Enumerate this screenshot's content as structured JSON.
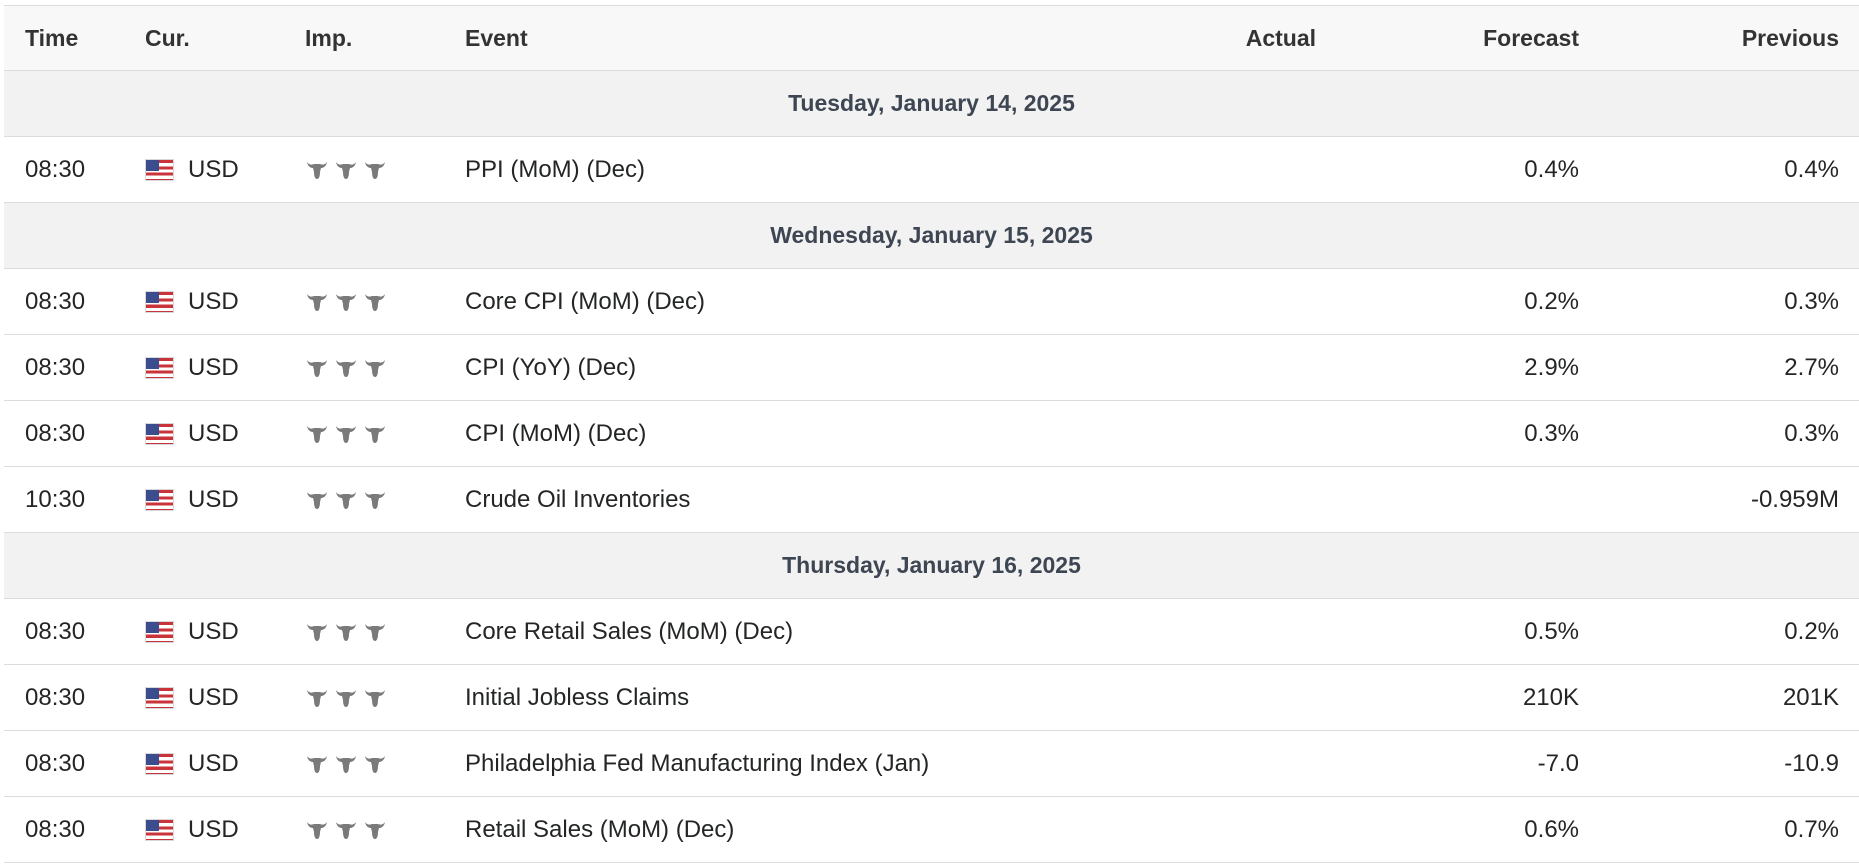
{
  "header": {
    "time": "Time",
    "currency": "Cur.",
    "importance": "Imp.",
    "event": "Event",
    "actual": "Actual",
    "forecast": "Forecast",
    "previous": "Previous"
  },
  "colors": {
    "header_bg": "#f8f8f8",
    "day_bg": "#f2f2f2",
    "border": "#dcdcdc",
    "bull_icon": "#7a7a7a",
    "text": "#232526"
  },
  "days": [
    {
      "label": "Tuesday, January 14, 2025",
      "events": [
        {
          "time": "08:30",
          "currency": "USD",
          "flag_icon": "us-flag-icon",
          "importance": 3,
          "event": "PPI (MoM) (Dec)",
          "actual": "",
          "forecast": "0.4%",
          "previous": "0.4%"
        }
      ]
    },
    {
      "label": "Wednesday, January 15, 2025",
      "events": [
        {
          "time": "08:30",
          "currency": "USD",
          "flag_icon": "us-flag-icon",
          "importance": 3,
          "event": "Core CPI (MoM) (Dec)",
          "actual": "",
          "forecast": "0.2%",
          "previous": "0.3%"
        },
        {
          "time": "08:30",
          "currency": "USD",
          "flag_icon": "us-flag-icon",
          "importance": 3,
          "event": "CPI (YoY) (Dec)",
          "actual": "",
          "forecast": "2.9%",
          "previous": "2.7%"
        },
        {
          "time": "08:30",
          "currency": "USD",
          "flag_icon": "us-flag-icon",
          "importance": 3,
          "event": "CPI (MoM) (Dec)",
          "actual": "",
          "forecast": "0.3%",
          "previous": "0.3%"
        },
        {
          "time": "10:30",
          "currency": "USD",
          "flag_icon": "us-flag-icon",
          "importance": 3,
          "event": "Crude Oil Inventories",
          "actual": "",
          "forecast": "",
          "previous": "-0.959M"
        }
      ]
    },
    {
      "label": "Thursday, January 16, 2025",
      "events": [
        {
          "time": "08:30",
          "currency": "USD",
          "flag_icon": "us-flag-icon",
          "importance": 3,
          "event": "Core Retail Sales (MoM) (Dec)",
          "actual": "",
          "forecast": "0.5%",
          "previous": "0.2%"
        },
        {
          "time": "08:30",
          "currency": "USD",
          "flag_icon": "us-flag-icon",
          "importance": 3,
          "event": "Initial Jobless Claims",
          "actual": "",
          "forecast": "210K",
          "previous": "201K"
        },
        {
          "time": "08:30",
          "currency": "USD",
          "flag_icon": "us-flag-icon",
          "importance": 3,
          "event": "Philadelphia Fed Manufacturing Index (Jan)",
          "actual": "",
          "forecast": "-7.0",
          "previous": "-10.9"
        },
        {
          "time": "08:30",
          "currency": "USD",
          "flag_icon": "us-flag-icon",
          "importance": 3,
          "event": "Retail Sales (MoM) (Dec)",
          "actual": "",
          "forecast": "0.6%",
          "previous": "0.7%"
        }
      ]
    }
  ]
}
